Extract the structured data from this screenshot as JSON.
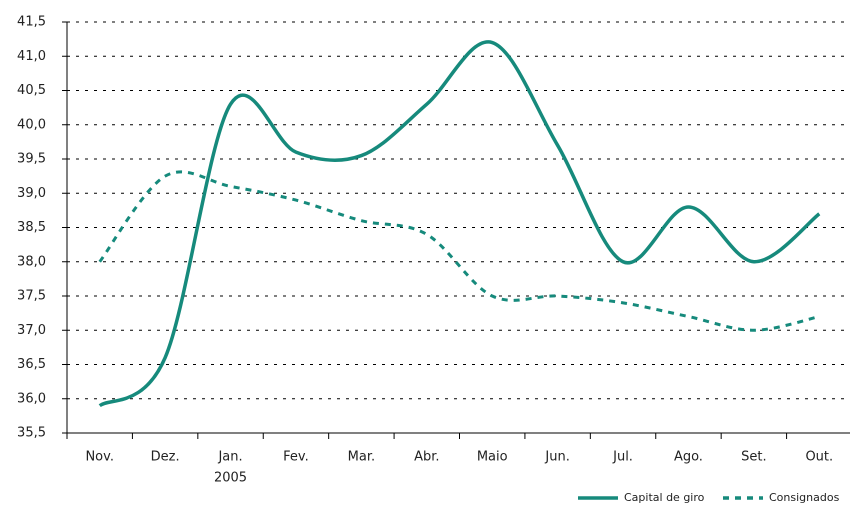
{
  "chart_data": {
    "type": "line",
    "categories": [
      "Nov.",
      "Dez.",
      "Jan.",
      "Fev.",
      "Mar.",
      "Abr.",
      "Maio",
      "Jun.",
      "Jul.",
      "Ago.",
      "Set.",
      "Out."
    ],
    "year_note": "2005",
    "series": [
      {
        "name": "Capital de giro",
        "color": "#168a7c",
        "style": "solid",
        "values": [
          35.9,
          36.6,
          40.3,
          39.6,
          39.55,
          40.3,
          41.2,
          39.7,
          38.0,
          38.8,
          38.0,
          38.7
        ]
      },
      {
        "name": "Consignados",
        "color": "#168a7c",
        "style": "dashed",
        "values": [
          38.0,
          39.25,
          39.1,
          38.9,
          38.6,
          38.4,
          37.5,
          37.5,
          37.4,
          37.2,
          37.0,
          37.2
        ]
      }
    ],
    "ylim": [
      35.5,
      41.5
    ],
    "yticks": [
      {
        "value": 35.5,
        "label": "35,5"
      },
      {
        "value": 36.0,
        "label": "36,0"
      },
      {
        "value": 36.5,
        "label": "36,5"
      },
      {
        "value": 37.0,
        "label": "37,0"
      },
      {
        "value": 37.5,
        "label": "37,5"
      },
      {
        "value": 38.0,
        "label": "38,0"
      },
      {
        "value": 38.5,
        "label": "38,5"
      },
      {
        "value": 39.0,
        "label": "39,0"
      },
      {
        "value": 39.5,
        "label": "39,5"
      },
      {
        "value": 40.0,
        "label": "40,0"
      },
      {
        "value": 40.5,
        "label": "40,5"
      },
      {
        "value": 41.0,
        "label": "41,0"
      },
      {
        "value": 41.5,
        "label": "41,5"
      }
    ],
    "grid": true,
    "legend": "bottom-right"
  }
}
